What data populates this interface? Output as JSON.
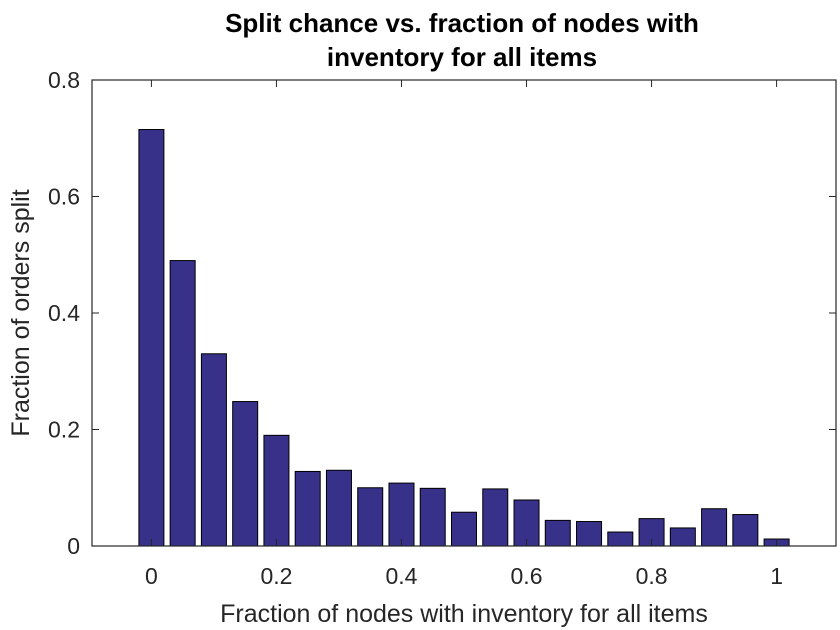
{
  "chart_data": {
    "type": "bar",
    "title": [
      "Split chance vs. fraction of nodes with",
      "inventory for all items"
    ],
    "xlabel": "Fraction of nodes with inventory for all items",
    "ylabel": "Fraction of orders split",
    "x": [
      0,
      0.05,
      0.1,
      0.15,
      0.2,
      0.25,
      0.3,
      0.35,
      0.4,
      0.45,
      0.5,
      0.55,
      0.6,
      0.65,
      0.7,
      0.75,
      0.8,
      0.85,
      0.9,
      0.95,
      1.0
    ],
    "values": [
      0.715,
      0.49,
      0.33,
      0.248,
      0.19,
      0.128,
      0.13,
      0.1,
      0.108,
      0.099,
      0.058,
      0.098,
      0.079,
      0.044,
      0.042,
      0.024,
      0.047,
      0.031,
      0.064,
      0.054,
      0.012
    ],
    "xlim": [
      -0.095,
      1.095
    ],
    "ylim": [
      0,
      0.8
    ],
    "xticks": [
      0,
      0.2,
      0.4,
      0.6,
      0.8,
      1
    ],
    "xticklabels": [
      "0",
      "0.2",
      "0.4",
      "0.6",
      "0.8",
      "1"
    ],
    "yticks": [
      0,
      0.2,
      0.4,
      0.6,
      0.8
    ],
    "yticklabels": [
      "0",
      "0.2",
      "0.4",
      "0.6",
      "0.8"
    ],
    "bar_color": "#37318a",
    "grid": false,
    "legend": "none"
  }
}
